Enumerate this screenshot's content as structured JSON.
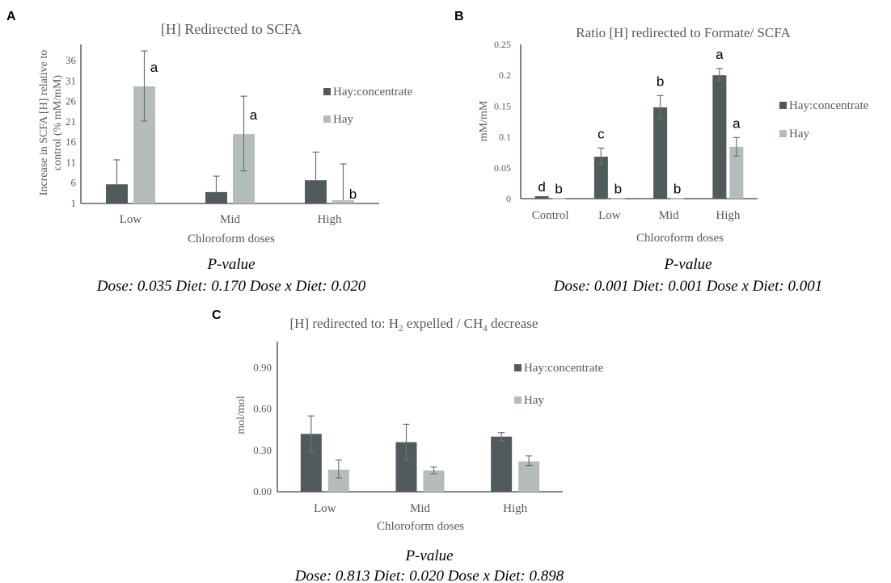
{
  "colors": {
    "hay_concentrate": "#525b5b",
    "hay": "#b4bdbc",
    "axis": "#404040",
    "error": "#707070"
  },
  "chart_data": [
    {
      "panel": "A",
      "type": "bar",
      "title": "[H] Redirected to SCFA",
      "xlabel": "Chloroform doses",
      "ylabel_lines": [
        "Increase in SCFA [H] relative to",
        "control (% mM/mM)"
      ],
      "ylim": [
        1,
        40
      ],
      "yticks": [
        "1",
        "6",
        "11",
        "16",
        "21",
        "26",
        "31",
        "36"
      ],
      "ytick_values": [
        1,
        6,
        11,
        16,
        21,
        26,
        31,
        36
      ],
      "categories": [
        "Low",
        "Mid",
        "High"
      ],
      "series": [
        {
          "name": "Hay:concentrate",
          "values": [
            5.7,
            3.8,
            6.7
          ],
          "err_upper": [
            11.7,
            7.7,
            13.6
          ],
          "err_lower": [
            null,
            null,
            null
          ],
          "letters": [
            "",
            "",
            ""
          ]
        },
        {
          "name": "Hay",
          "values": [
            29.7,
            18.0,
            1.8
          ],
          "err_upper": [
            38.4,
            27.3,
            10.7
          ],
          "err_lower": [
            21.2,
            9.0,
            null
          ],
          "letters": [
            "a",
            "a",
            "b"
          ]
        }
      ],
      "legend": "right",
      "pvalue_label": "P-value",
      "pvalues": "Dose: 0.035 Diet: 0.170 Dose x Diet: 0.020"
    },
    {
      "panel": "B",
      "type": "bar",
      "title": "Ratio [H] redirected to Formate/ SCFA",
      "xlabel": "Chloroform doses",
      "ylabel_lines": [
        "mM/mM"
      ],
      "ylim": [
        0,
        0.25
      ],
      "yticks": [
        "0",
        "0.05",
        "0.1",
        "0.15",
        "0.2",
        "0.25"
      ],
      "ytick_values": [
        0,
        0.05,
        0.1,
        0.15,
        0.2,
        0.25
      ],
      "categories": [
        "Control",
        "Low",
        "Mid",
        "High"
      ],
      "series": [
        {
          "name": "Hay:concentrate",
          "values": [
            0.004,
            0.068,
            0.148,
            0.2
          ],
          "err_upper": [
            null,
            0.082,
            0.167,
            0.211
          ],
          "err_lower": [
            null,
            0.056,
            0.13,
            0.192
          ],
          "letters": [
            "d",
            "c",
            "b",
            "a"
          ]
        },
        {
          "name": "Hay",
          "values": [
            0.0005,
            0.0005,
            0.0005,
            0.084
          ],
          "err_upper": [
            null,
            null,
            null,
            0.099
          ],
          "err_lower": [
            null,
            null,
            null,
            0.069
          ],
          "letters": [
            "b",
            "b",
            "b",
            "a"
          ]
        }
      ],
      "legend": "right",
      "pvalue_label": "P-value",
      "pvalues": "Dose: 0.001 Diet: 0.001 Dose x Diet: 0.001"
    },
    {
      "panel": "C",
      "type": "bar",
      "title_parts": [
        "[H] redirected to: H",
        "2",
        " expelled / CH",
        "4",
        " decrease"
      ],
      "xlabel": "Chloroform doses",
      "ylabel_lines": [
        "mol/mol"
      ],
      "ylim": [
        0,
        1.09
      ],
      "yticks": [
        "0.00",
        "0.30",
        "0.60",
        "0.90"
      ],
      "ytick_values": [
        0,
        0.3,
        0.6,
        0.9
      ],
      "categories": [
        "Low",
        "Mid",
        "High"
      ],
      "series": [
        {
          "name": "Hay:concentrate",
          "values": [
            0.42,
            0.36,
            0.4
          ],
          "err_upper": [
            0.55,
            0.49,
            0.43
          ],
          "err_lower": [
            0.29,
            0.23,
            0.37
          ],
          "letters": [
            "",
            "",
            ""
          ]
        },
        {
          "name": "Hay",
          "values": [
            0.16,
            0.155,
            0.22
          ],
          "err_upper": [
            0.23,
            0.18,
            0.26
          ],
          "err_lower": [
            0.1,
            0.13,
            0.19
          ],
          "letters": [
            "",
            "",
            ""
          ]
        }
      ],
      "legend": "right",
      "pvalue_label": "P-value",
      "pvalues": "Dose: 0.813 Diet: 0.020 Dose x Diet: 0.898"
    }
  ]
}
